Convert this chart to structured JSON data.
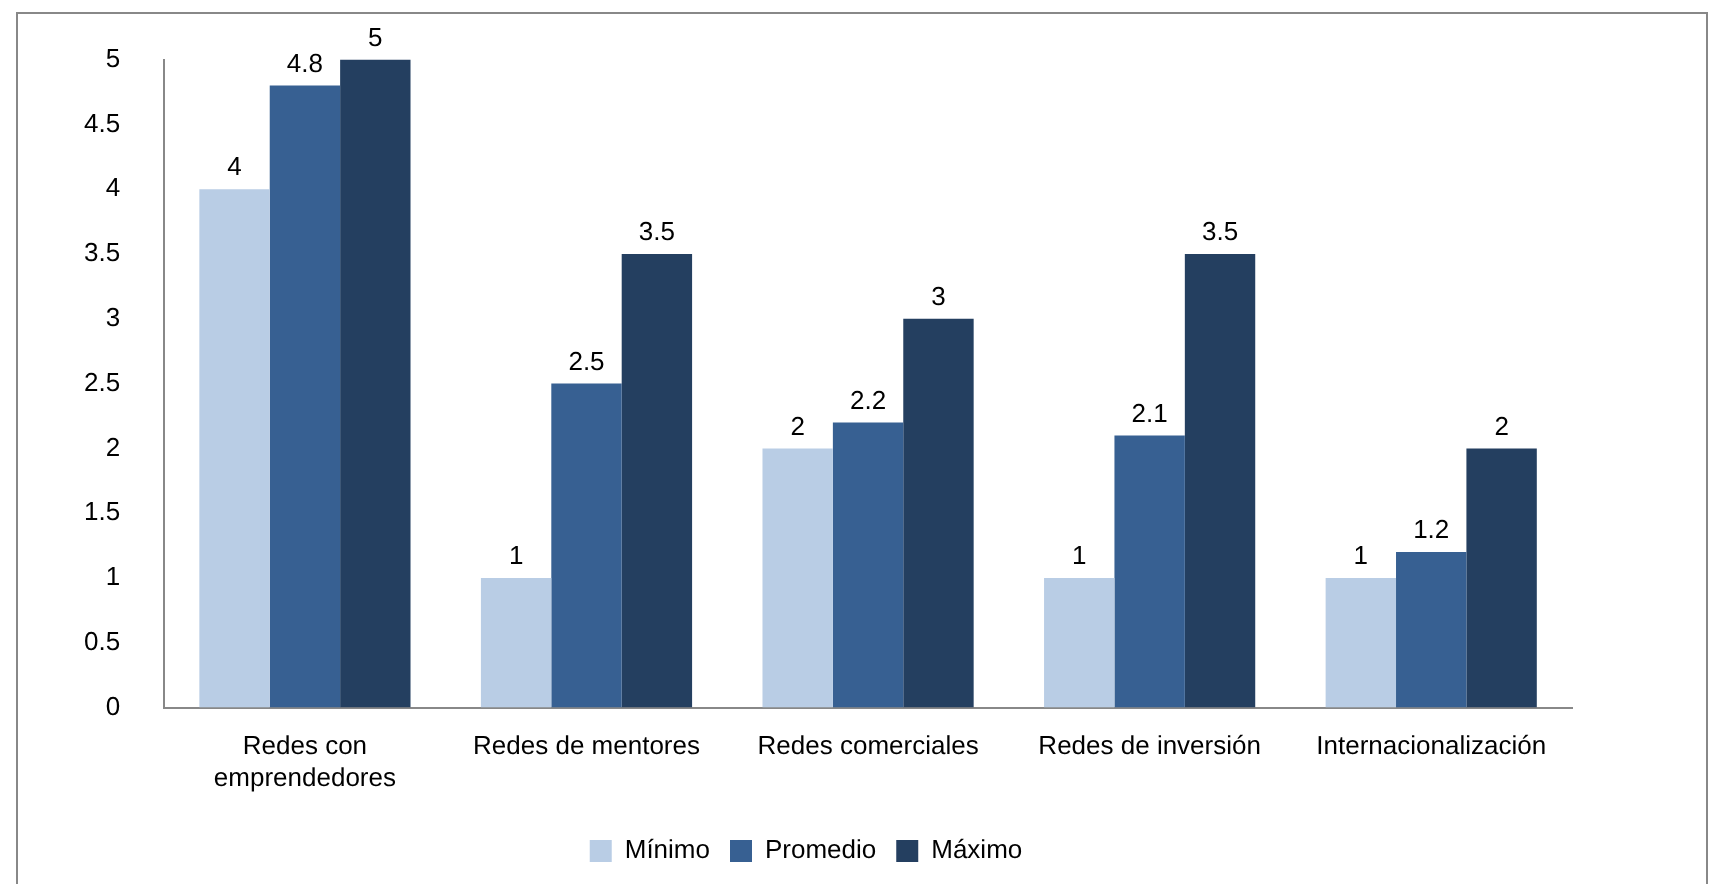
{
  "chart_data": {
    "type": "bar",
    "categories": [
      [
        "Redes con",
        "emprendedores"
      ],
      "Redes de mentores",
      "Redes comerciales",
      "Redes de inversión",
      "Internacionalización"
    ],
    "series": [
      {
        "name": "Mínimo",
        "color": "#b9cde5",
        "values": [
          4,
          1,
          2,
          1,
          1
        ]
      },
      {
        "name": "Promedio",
        "color": "#376092",
        "values": [
          4.8,
          2.5,
          2.2,
          2.1,
          1.2
        ]
      },
      {
        "name": "Máximo",
        "color": "#243f60",
        "values": [
          5,
          3.5,
          3,
          3.5,
          2
        ]
      }
    ],
    "ylim": [
      0,
      5
    ],
    "yticks": [
      0,
      0.5,
      1,
      1.5,
      2,
      2.5,
      3,
      3.5,
      4,
      4.5,
      5
    ],
    "grid": false,
    "legend": "bottom",
    "data_labels": true
  }
}
